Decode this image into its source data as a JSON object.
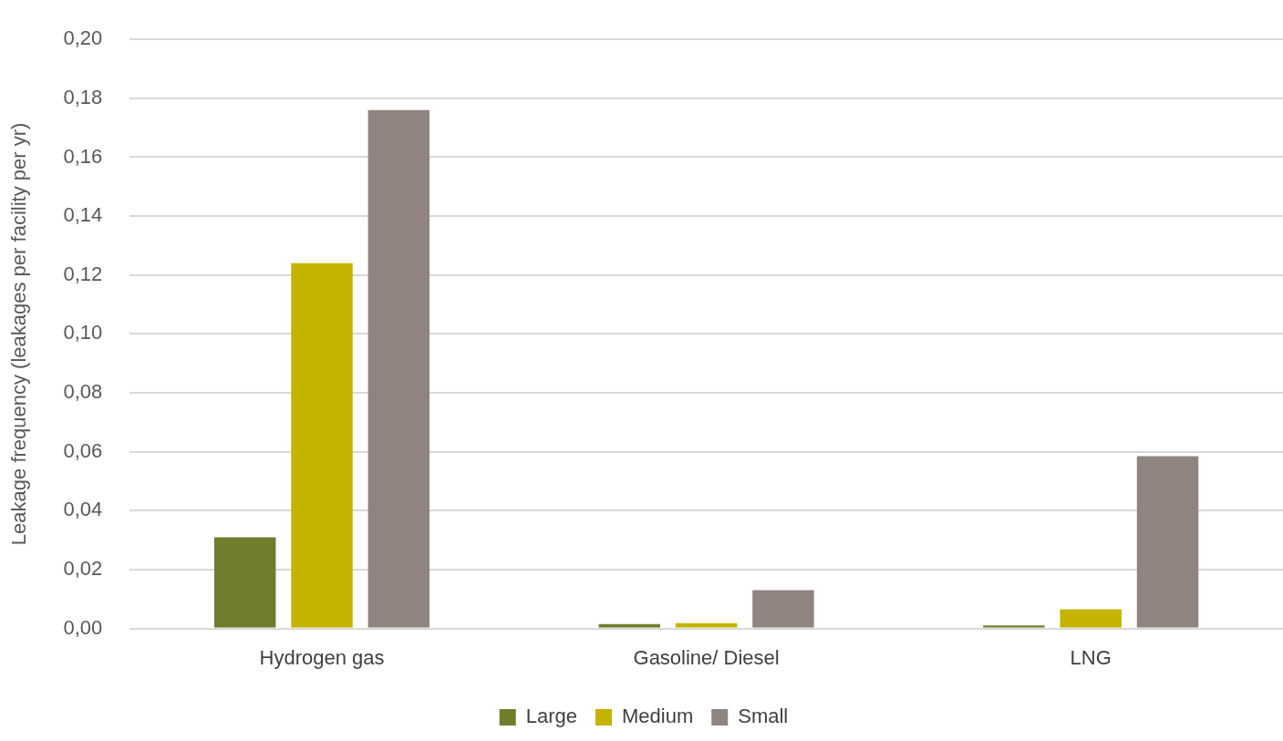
{
  "chart_data": {
    "type": "bar",
    "ylabel": "Leakage frequency (leakages per facility per yr)",
    "categories": [
      "Hydrogen gas",
      "Gasoline/ Diesel",
      "LNG"
    ],
    "series": [
      {
        "name": "Large",
        "color": "#6f7d2c",
        "values": [
          0.031,
          0.0015,
          0.001
        ]
      },
      {
        "name": "Medium",
        "color": "#c4b400",
        "values": [
          0.124,
          0.0018,
          0.0065
        ]
      },
      {
        "name": "Small",
        "color": "#8f8480",
        "values": [
          0.176,
          0.013,
          0.0585
        ]
      }
    ],
    "ylim": [
      0,
      0.2
    ],
    "yticks": [
      {
        "value": 0,
        "label": "0,00"
      },
      {
        "value": 0.02,
        "label": "0,02"
      },
      {
        "value": 0.04,
        "label": "0,04"
      },
      {
        "value": 0.06,
        "label": "0,06"
      },
      {
        "value": 0.08,
        "label": "0,08"
      },
      {
        "value": 0.1,
        "label": "0,10"
      },
      {
        "value": 0.12,
        "label": "0,12"
      },
      {
        "value": 0.14,
        "label": "0,14"
      },
      {
        "value": 0.16,
        "label": "0,16"
      },
      {
        "value": 0.18,
        "label": "0,18"
      },
      {
        "value": 0.2,
        "label": "0,20"
      }
    ],
    "grid": "y",
    "legend": "bottom"
  }
}
